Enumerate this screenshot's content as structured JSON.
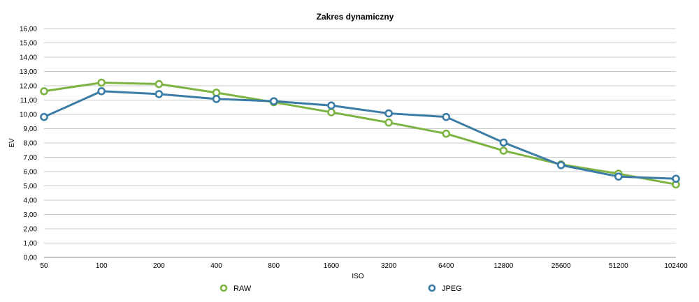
{
  "chart_data": {
    "type": "line",
    "title": "Zakres dynamiczny",
    "xlabel": "ISO",
    "ylabel": "EV",
    "categories": [
      "50",
      "100",
      "200",
      "400",
      "800",
      "1600",
      "3200",
      "6400",
      "12800",
      "25600",
      "51200",
      "102400"
    ],
    "ylim": [
      0,
      16
    ],
    "ytick_step": 1,
    "ytick_labels": [
      "0,00",
      "1,00",
      "2,00",
      "3,00",
      "4,00",
      "5,00",
      "6,00",
      "7,00",
      "8,00",
      "9,00",
      "10,00",
      "11,00",
      "12,00",
      "13,00",
      "14,00",
      "15,00",
      "16,00"
    ],
    "grid": true,
    "legend_position": "bottom",
    "series": [
      {
        "name": "RAW",
        "color": "#7cb342",
        "values": [
          11.62,
          12.22,
          12.12,
          11.52,
          10.85,
          10.15,
          9.43,
          8.65,
          7.46,
          6.5,
          5.85,
          5.1
        ]
      },
      {
        "name": "JPEG",
        "color": "#3a7ca5",
        "values": [
          9.82,
          11.62,
          11.42,
          11.08,
          10.92,
          10.62,
          10.07,
          9.82,
          8.03,
          6.45,
          5.65,
          5.5
        ]
      }
    ]
  }
}
